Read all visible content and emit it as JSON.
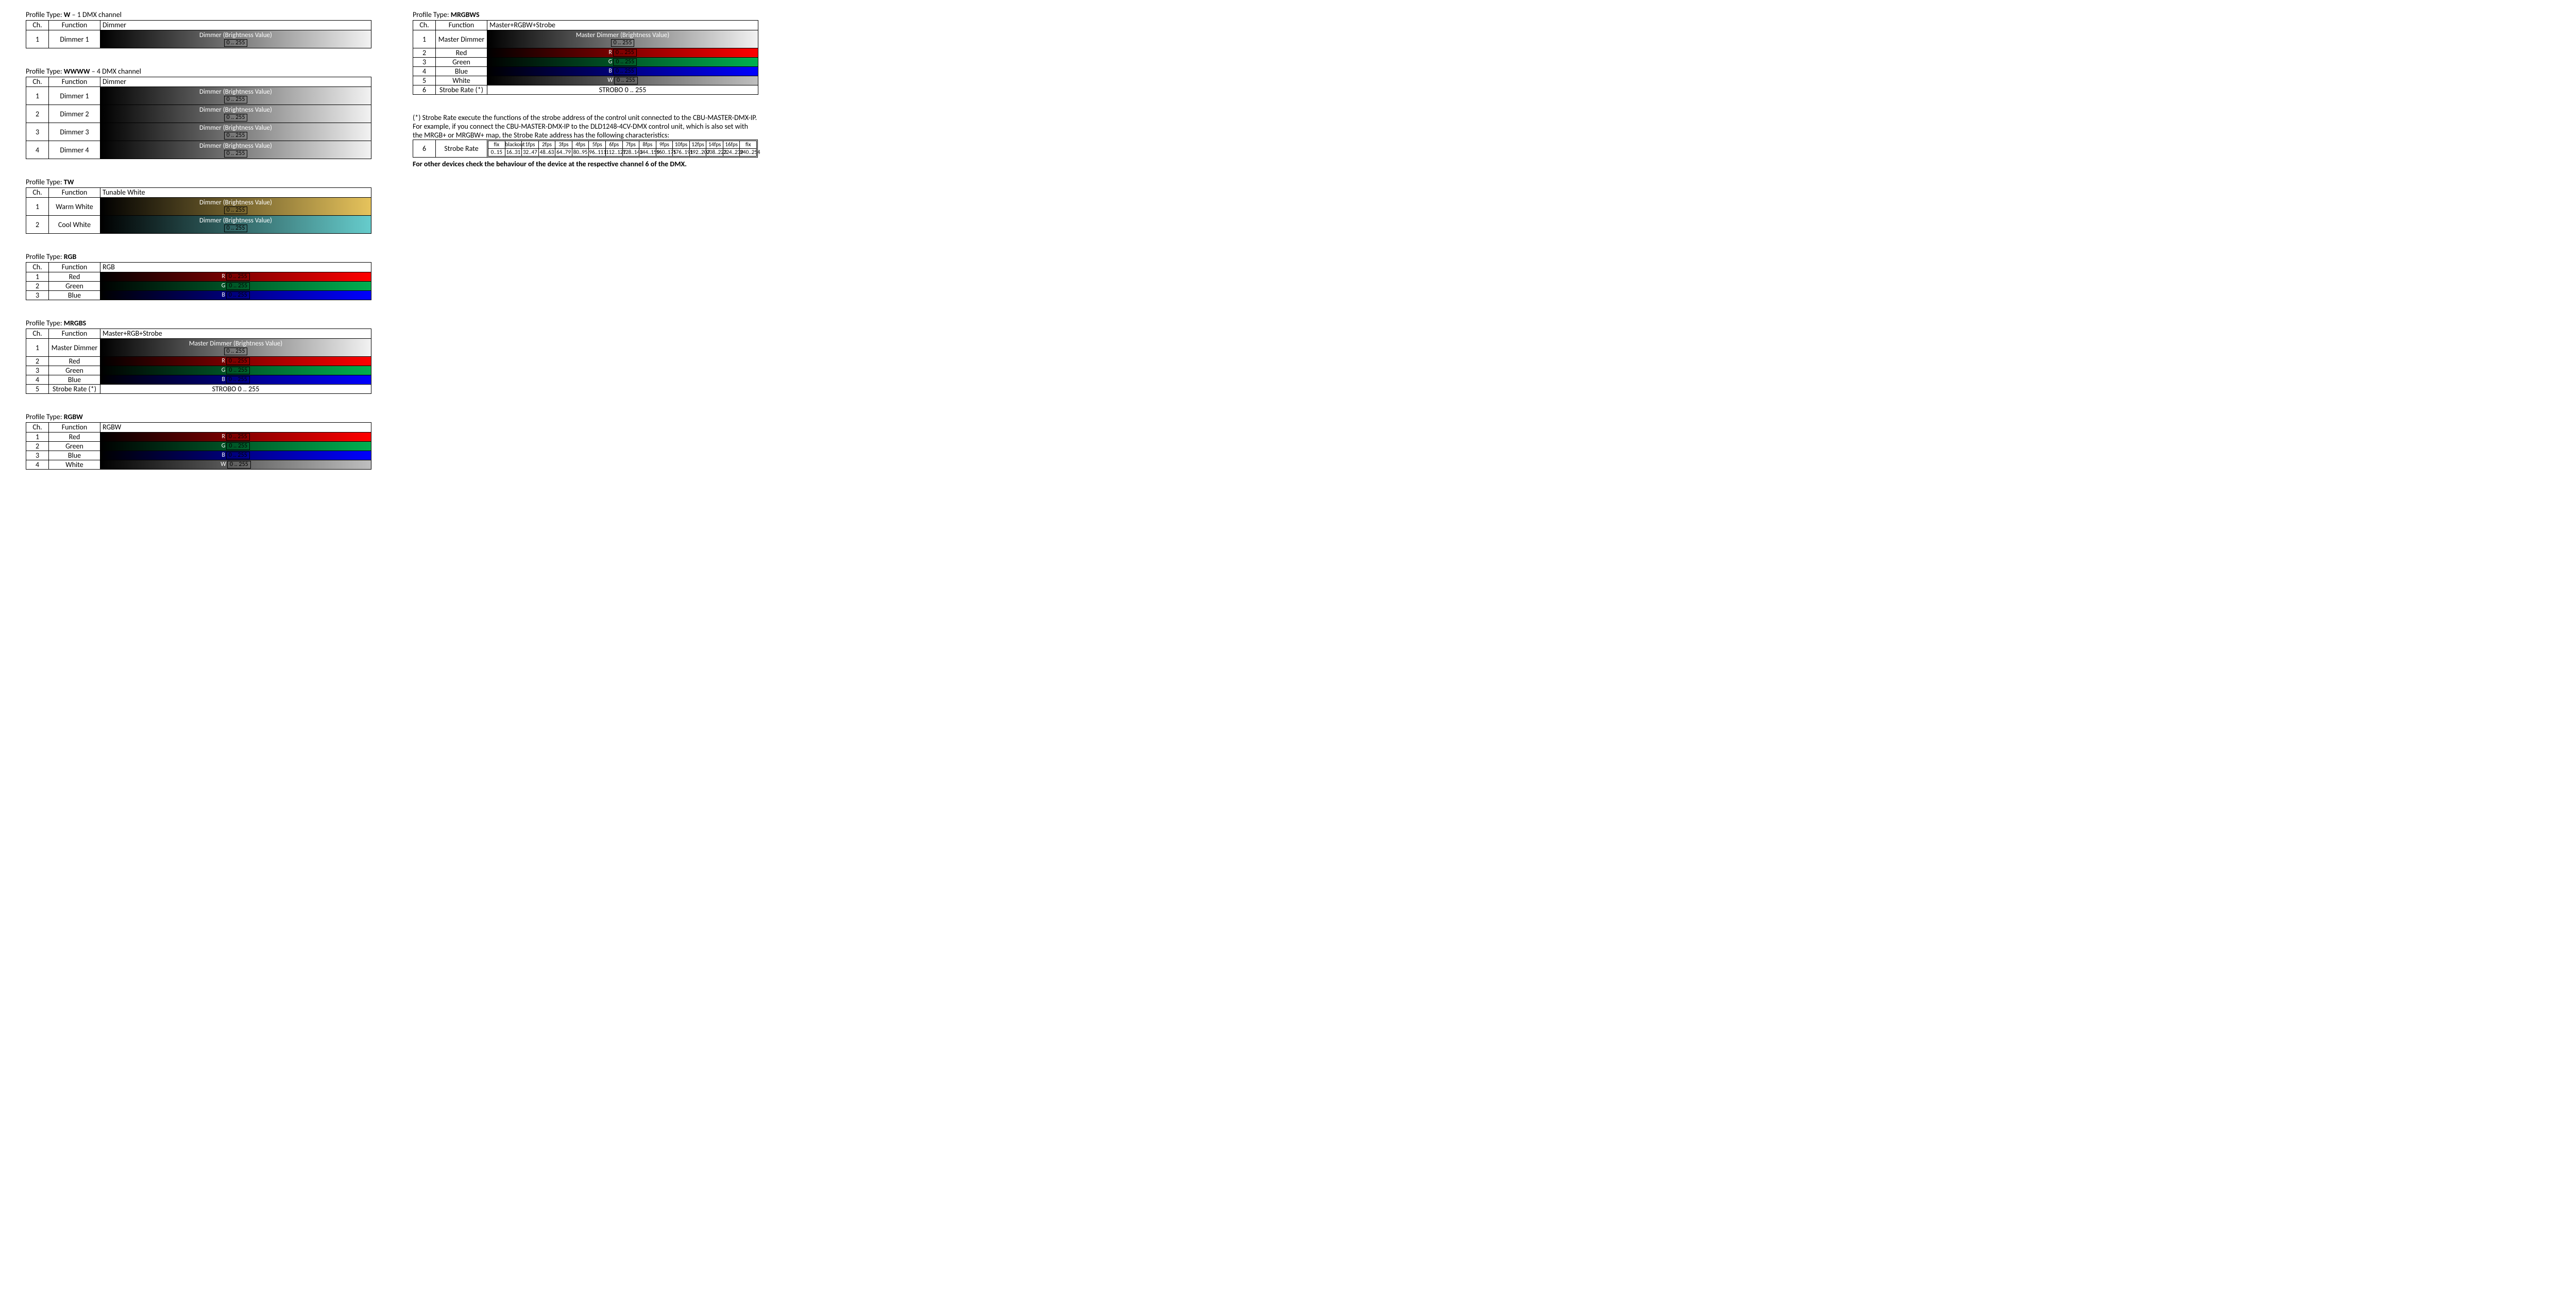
{
  "labels": {
    "ch": "Ch.",
    "function": "Function",
    "profile_pre": "Profile Type: "
  },
  "colors": {
    "black": "#000000",
    "white": "#ffffff",
    "red": "#ff0000",
    "green": "#00b050",
    "blue": "#0000ff",
    "grey_end": "#f2f2f2",
    "warm_end": "#e6c35c",
    "cool_end": "#66cccc",
    "white_end": "#bfbfbf"
  },
  "left": [
    {
      "title_bold": "W",
      "title_post": " – 1 DMX channel",
      "header3": "Dimmer",
      "rows": [
        {
          "ch": "1",
          "fn": "Dimmer 1",
          "type": "dimmer_tall",
          "label": "Dimmer (Brightness Value)",
          "range": "0 .. 255",
          "g_from": "#000000",
          "g_to": "#f2f2f2"
        }
      ]
    },
    {
      "title_bold": "WWWW",
      "title_post": " – 4 DMX channel",
      "header3": "Dimmer",
      "rows": [
        {
          "ch": "1",
          "fn": "Dimmer 1",
          "type": "dimmer_tall",
          "label": "Dimmer (Brightness Value)",
          "range": "0 .. 255",
          "g_from": "#000000",
          "g_to": "#f2f2f2"
        },
        {
          "ch": "2",
          "fn": "Dimmer 2",
          "type": "dimmer_tall",
          "label": "Dimmer (Brightness Value)",
          "range": "0 .. 255",
          "g_from": "#000000",
          "g_to": "#f2f2f2"
        },
        {
          "ch": "3",
          "fn": "Dimmer 3",
          "type": "dimmer_tall",
          "label": "Dimmer (Brightness Value)",
          "range": "0 .. 255",
          "g_from": "#000000",
          "g_to": "#f2f2f2"
        },
        {
          "ch": "4",
          "fn": "Dimmer 4",
          "type": "dimmer_tall",
          "label": "Dimmer (Brightness Value)",
          "range": "0 .. 255",
          "g_from": "#000000",
          "g_to": "#f2f2f2"
        }
      ]
    },
    {
      "title_bold": "TW",
      "title_post": "",
      "header3": "Tunable White",
      "rows": [
        {
          "ch": "1",
          "fn": "Warm White",
          "type": "dimmer_tall",
          "label": "Dimmer (Brightness Value)",
          "range": "0 .. 255",
          "g_from": "#000000",
          "g_to": "#e6c35c"
        },
        {
          "ch": "2",
          "fn": "Cool White",
          "type": "dimmer_tall",
          "label": "Dimmer (Brightness Value)",
          "range": "0 .. 255",
          "g_from": "#000000",
          "g_to": "#66cccc"
        }
      ]
    },
    {
      "title_bold": "RGB",
      "title_post": "",
      "header3": "RGB",
      "rows": [
        {
          "ch": "1",
          "fn": "Red",
          "type": "color_short",
          "lead": "R",
          "range": "0 .. 255",
          "g_from": "#000000",
          "g_to": "#ff0000"
        },
        {
          "ch": "2",
          "fn": "Green",
          "type": "color_short",
          "lead": "G",
          "range": "0 .. 255",
          "g_from": "#000000",
          "g_to": "#00b050"
        },
        {
          "ch": "3",
          "fn": "Blue",
          "type": "color_short",
          "lead": "B",
          "range": "0 .. 255",
          "g_from": "#000000",
          "g_to": "#0000ff"
        }
      ]
    },
    {
      "title_bold": "MRGBS",
      "title_post": "",
      "header3": "Master+RGB+Strobe",
      "rows": [
        {
          "ch": "1",
          "fn": "Master Dimmer",
          "type": "dimmer_tall",
          "label": "Master Dimmer (Brightness Value)",
          "range": "0 .. 255",
          "g_from": "#000000",
          "g_to": "#f2f2f2"
        },
        {
          "ch": "2",
          "fn": "Red",
          "type": "color_short",
          "lead": "R",
          "range": "0 .. 255",
          "g_from": "#000000",
          "g_to": "#ff0000"
        },
        {
          "ch": "3",
          "fn": "Green",
          "type": "color_short",
          "lead": "G",
          "range": "0 .. 255",
          "g_from": "#000000",
          "g_to": "#00b050"
        },
        {
          "ch": "4",
          "fn": "Blue",
          "type": "color_short",
          "lead": "B",
          "range": "0 .. 255",
          "g_from": "#000000",
          "g_to": "#0000ff"
        },
        {
          "ch": "5",
          "fn": "Strobe Rate (*)",
          "type": "plain",
          "text": "STROBO 0 .. 255"
        }
      ]
    },
    {
      "title_bold": "RGBW",
      "title_post": "",
      "header3": "RGBW",
      "rows": [
        {
          "ch": "1",
          "fn": "Red",
          "type": "color_short",
          "lead": "R",
          "range": "0 .. 255",
          "g_from": "#000000",
          "g_to": "#ff0000"
        },
        {
          "ch": "2",
          "fn": "Green",
          "type": "color_short",
          "lead": "G",
          "range": "0 .. 255",
          "g_from": "#000000",
          "g_to": "#00b050"
        },
        {
          "ch": "3",
          "fn": "Blue",
          "type": "color_short",
          "lead": "B",
          "range": "0 .. 255",
          "g_from": "#000000",
          "g_to": "#0000ff"
        },
        {
          "ch": "4",
          "fn": "White",
          "type": "color_short",
          "lead": "W",
          "range": "0 .. 255",
          "g_from": "#000000",
          "g_to": "#bfbfbf"
        }
      ]
    }
  ],
  "right": [
    {
      "title_bold": "MRGBWS",
      "title_post": "",
      "header3": "Master+RGBW+Strobe",
      "rows": [
        {
          "ch": "1",
          "fn": "Master Dimmer",
          "type": "dimmer_tall",
          "label": "Master Dimmer (Brightness Value)",
          "range": "0 .. 255",
          "g_from": "#000000",
          "g_to": "#f2f2f2"
        },
        {
          "ch": "2",
          "fn": "Red",
          "type": "color_short",
          "lead": "R",
          "range": "0 .. 255",
          "g_from": "#000000",
          "g_to": "#ff0000"
        },
        {
          "ch": "3",
          "fn": "Green",
          "type": "color_short",
          "lead": "G",
          "range": "0 .. 255",
          "g_from": "#000000",
          "g_to": "#00b050"
        },
        {
          "ch": "4",
          "fn": "Blue",
          "type": "color_short",
          "lead": "B",
          "range": "0 .. 255",
          "g_from": "#000000",
          "g_to": "#0000ff"
        },
        {
          "ch": "5",
          "fn": "White",
          "type": "color_short",
          "lead": "W",
          "range": "0 .. 255",
          "g_from": "#000000",
          "g_to": "#bfbfbf"
        },
        {
          "ch": "6",
          "fn": "Strobe Rate (*)",
          "type": "plain",
          "text": "STROBO 0 .. 255"
        }
      ]
    }
  ],
  "strobe_note": "(*) Strobe Rate execute the functions of the strobe address of the control unit connected to the CBU-MASTER-DMX-IP. For example, if you connect the CBU-MASTER-DMX-IP to the DLD1248-4CV-DMX control unit, which is also set with the MRGB+ or MRGBW+ map, the Strobe Rate address has the following characteristics:",
  "strobe_table": {
    "ch": "6",
    "fn": "Strobe Rate",
    "top": [
      "fix",
      "blackout",
      "1fps",
      "2fps",
      "3fps",
      "4fps",
      "5fps",
      "6fps",
      "7fps",
      "8fps",
      "9fps",
      "10fps",
      "12fps",
      "14fps",
      "16fps",
      "fix"
    ],
    "bot": [
      "0..15",
      "16..31",
      "32..47",
      "48..63",
      "64..79",
      "80..95",
      "96..111",
      "112..127",
      "128..143",
      "144..159",
      "160..175",
      "176..191",
      "192..207",
      "208..223",
      "224..239",
      "240..254"
    ]
  },
  "strobe_footer": "For other devices check the behaviour of the device at the respective channel 6 of the DMX."
}
